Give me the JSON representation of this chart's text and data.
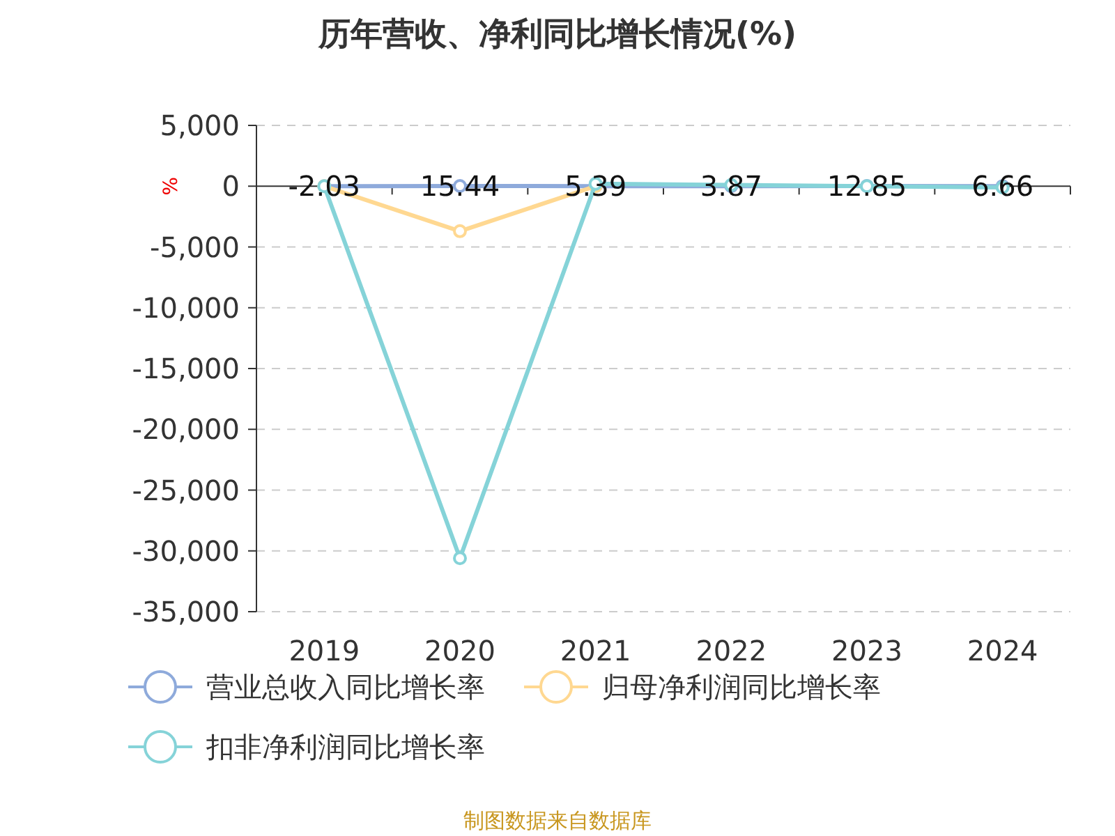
{
  "chart_data": {
    "type": "line",
    "title": "历年营收、净利同比增长情况(%)",
    "ylabel": "%",
    "categories": [
      "2019",
      "2020",
      "2021",
      "2022",
      "2023",
      "2024"
    ],
    "series": [
      {
        "name": "营业总收入同比增长率",
        "color": "#8eaadb",
        "values": [
          -2.03,
          15.44,
          5.39,
          3.87,
          12.85,
          6.66
        ],
        "value_labels": [
          "-2.03",
          "15.44",
          "5.39",
          "3.87",
          "12.85",
          "6.66"
        ]
      },
      {
        "name": "归母净利润同比增长率",
        "color": "#ffd891",
        "values": [
          0,
          -3700,
          0,
          null,
          null,
          null
        ]
      },
      {
        "name": "扣非净利润同比增长率",
        "color": "#85d3d8",
        "values": [
          0,
          -30600,
          200,
          100,
          0,
          -100
        ]
      }
    ],
    "ylim": [
      -35000,
      5000
    ],
    "yticks": [
      {
        "value": 5000,
        "label": "5,000"
      },
      0,
      {
        "value": -5000,
        "label": "-5,000"
      },
      {
        "value": -10000,
        "label": "-10,000"
      },
      {
        "value": -15000,
        "label": "-15,000"
      },
      {
        "value": -20000,
        "label": "-20,000"
      },
      {
        "value": -25000,
        "label": "-25,000"
      },
      {
        "value": -30000,
        "label": "-30,000"
      },
      {
        "value": -35000,
        "label": "-35,000"
      }
    ],
    "grid": "y",
    "legend": "bottom",
    "marker": "circle",
    "line_style": "solid",
    "annotations": [
      "制图数据来自数据库"
    ]
  }
}
